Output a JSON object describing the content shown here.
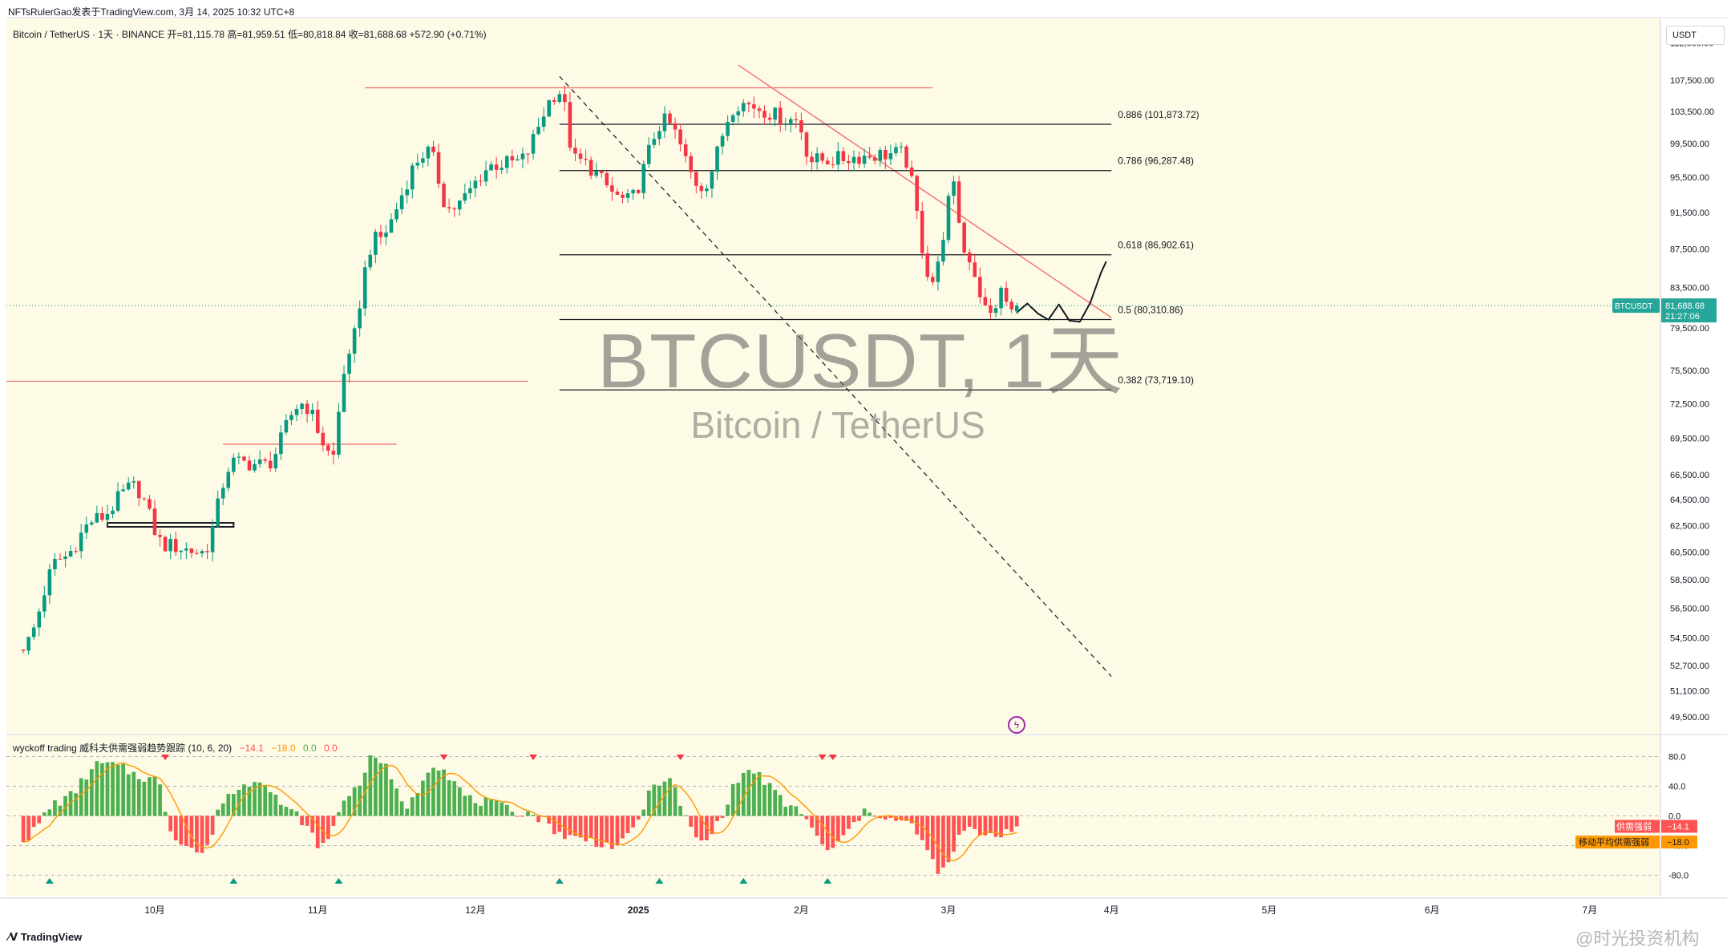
{
  "header": {
    "attribution": "NFTsRulerGao发表于TradingView.com,  3月 14, 2025 10:32 UTC+8",
    "symbol_line": "Bitcoin / TetherUS · 1天 · BINANCE  开=81,115.78  高=81,959.51  低=80,818.84  收=81,688.68  +572.90 (+0.71%)"
  },
  "watermark": {
    "symbol": "BTCUSDT, 1天",
    "description": "Bitcoin / TetherUS"
  },
  "price_axis": {
    "currency": "USDT",
    "last_symbol": "BTCUSDT",
    "last_price": "81,688.68",
    "countdown": "21:27:06"
  },
  "indicator": {
    "name": "wyckoff trading 威科夫供需强弱趋势跟踪 (10, 6, 20)",
    "v1": "−14.1",
    "v2": "−18.0",
    "v3": "0.0",
    "v4": "0.0",
    "label1": "供需强弱",
    "value1": "−14.1",
    "label2": "移动平均供需强弱",
    "value2": "−18.0"
  },
  "footer": {
    "logo": "TradingView",
    "watermark": "@时光投资机构"
  },
  "colors": {
    "background": "#fdfbe5",
    "up": "#089981",
    "down": "#f23645",
    "hist_up": "#4caf50",
    "hist_down": "#ff5252",
    "ma_line": "#ff9800",
    "trend_red": "#f26d6d",
    "fib_line": "#131722",
    "label_teal": "#26a69a",
    "label_orange": "#ff9800"
  },
  "chart_data": [
    {
      "type": "candlestick",
      "title": "Bitcoin / TetherUS",
      "xlabel": "",
      "ylabel": "",
      "ylim": [
        48500,
        116000
      ],
      "x_ticks": [
        "10月",
        "11月",
        "12月",
        "2025",
        "2月",
        "3月",
        "4月",
        "5月",
        "6月",
        "7月"
      ],
      "y_ticks": [
        "112,500.00",
        "107,500.00",
        "103,500.00",
        "99,500.00",
        "95,500.00",
        "91,500.00",
        "87,500.00",
        "83,500.00",
        "79,500.00",
        "75,500.00",
        "72,500.00",
        "69,500.00",
        "66,500.00",
        "64,500.00",
        "62,500.00",
        "60,500.00",
        "58,500.00",
        "56,500.00",
        "54,500.00",
        "52,700.00",
        "51,100.00",
        "49,500.00"
      ],
      "anchors": [
        {
          "date": "2024-09-06",
          "close": 54000
        },
        {
          "date": "2024-09-13",
          "close": 60000
        },
        {
          "date": "2024-09-20",
          "close": 63000
        },
        {
          "date": "2024-09-27",
          "close": 65500
        },
        {
          "date": "2024-10-03",
          "close": 61000
        },
        {
          "date": "2024-10-10",
          "close": 60500
        },
        {
          "date": "2024-10-16",
          "close": 67500
        },
        {
          "date": "2024-10-22",
          "close": 67300
        },
        {
          "date": "2024-10-29",
          "close": 72500
        },
        {
          "date": "2024-11-04",
          "close": 68000
        },
        {
          "date": "2024-11-06",
          "close": 75500
        },
        {
          "date": "2024-11-12",
          "close": 88500
        },
        {
          "date": "2024-11-22",
          "close": 98500
        },
        {
          "date": "2024-11-26",
          "close": 91900
        },
        {
          "date": "2024-12-05",
          "close": 97000
        },
        {
          "date": "2024-12-09",
          "close": 97300
        },
        {
          "date": "2024-12-17",
          "close": 106000
        },
        {
          "date": "2024-12-20",
          "close": 97500
        },
        {
          "date": "2024-12-30",
          "close": 92800
        },
        {
          "date": "2025-01-06",
          "close": 102200
        },
        {
          "date": "2025-01-13",
          "close": 94500
        },
        {
          "date": "2025-01-20",
          "close": 104500
        },
        {
          "date": "2025-01-31",
          "close": 102400
        },
        {
          "date": "2025-02-03",
          "close": 97500
        },
        {
          "date": "2025-02-20",
          "close": 98300
        },
        {
          "date": "2025-02-26",
          "close": 84200
        },
        {
          "date": "2025-03-02",
          "close": 94200
        },
        {
          "date": "2025-03-04",
          "close": 87200
        },
        {
          "date": "2025-03-09",
          "close": 80700
        },
        {
          "date": "2025-03-11",
          "close": 83000
        },
        {
          "date": "2025-03-13",
          "close": 81115
        },
        {
          "date": "2025-03-14",
          "close": 81688.68
        }
      ],
      "last_bar": {
        "date": "2025-03-14",
        "open": 81115.78,
        "high": 81959.51,
        "low": 80818.84,
        "close": 81688.68
      },
      "fibonacci": [
        {
          "label": "0.886 (101,873.72)",
          "level": 0.886,
          "price": 101873.72
        },
        {
          "label": "0.786 (96,287.48)",
          "level": 0.786,
          "price": 96287.48
        },
        {
          "label": "0.618 (86,902.61)",
          "level": 0.618,
          "price": 86902.61
        },
        {
          "label": "0.5 (80,310.86)",
          "level": 0.5,
          "price": 80310.86
        },
        {
          "label": "0.382 (73,719.10)",
          "level": 0.382,
          "price": 73719.1
        }
      ],
      "drawings": {
        "trendline_from": {
          "date": "2025-01-20",
          "price": 109500
        },
        "trendline_to": {
          "date": "2025-04-01",
          "price": 80500
        },
        "projection_from": {
          "date": "2024-12-17",
          "price": 108000
        },
        "projection_to": {
          "date": "2025-04-01",
          "price": 52000
        },
        "resistance_top": 106500,
        "support_left": 74500,
        "support_mid": 69000
      }
    },
    {
      "type": "bar",
      "title": "wyckoff trading 威科夫供需强弱趋势跟踪 (10, 6, 20)",
      "ylim": [
        -100,
        100
      ],
      "y_ticks": [
        "80.0",
        "40.0",
        "0.0",
        "-40.0",
        "-80.0"
      ],
      "reference_lines": [
        80,
        40,
        0,
        -40,
        -80
      ],
      "anchors": [
        {
          "date": "2024-09-06",
          "value": -30
        },
        {
          "date": "2024-09-13",
          "value": 20
        },
        {
          "date": "2024-09-21",
          "value": 70
        },
        {
          "date": "2024-10-01",
          "value": 50
        },
        {
          "date": "2024-10-05",
          "value": -30
        },
        {
          "date": "2024-10-10",
          "value": -50
        },
        {
          "date": "2024-10-15",
          "value": 30
        },
        {
          "date": "2024-10-21",
          "value": 50
        },
        {
          "date": "2024-10-27",
          "value": 5
        },
        {
          "date": "2024-11-02",
          "value": -40
        },
        {
          "date": "2024-11-07",
          "value": 30
        },
        {
          "date": "2024-11-12",
          "value": 80
        },
        {
          "date": "2024-11-18",
          "value": 15
        },
        {
          "date": "2024-11-23",
          "value": 70
        },
        {
          "date": "2024-12-01",
          "value": 20
        },
        {
          "date": "2024-12-10",
          "value": 5
        },
        {
          "date": "2024-12-20",
          "value": -30
        },
        {
          "date": "2024-12-28",
          "value": -40
        },
        {
          "date": "2025-01-06",
          "value": 50
        },
        {
          "date": "2025-01-13",
          "value": -35
        },
        {
          "date": "2025-01-22",
          "value": 60
        },
        {
          "date": "2025-01-31",
          "value": 10
        },
        {
          "date": "2025-02-06",
          "value": -45
        },
        {
          "date": "2025-02-14",
          "value": 5
        },
        {
          "date": "2025-02-21",
          "value": -10
        },
        {
          "date": "2025-02-28",
          "value": -75
        },
        {
          "date": "2025-03-04",
          "value": -20
        },
        {
          "date": "2025-03-10",
          "value": -25
        },
        {
          "date": "2025-03-14",
          "value": -14.1
        }
      ]
    }
  ]
}
